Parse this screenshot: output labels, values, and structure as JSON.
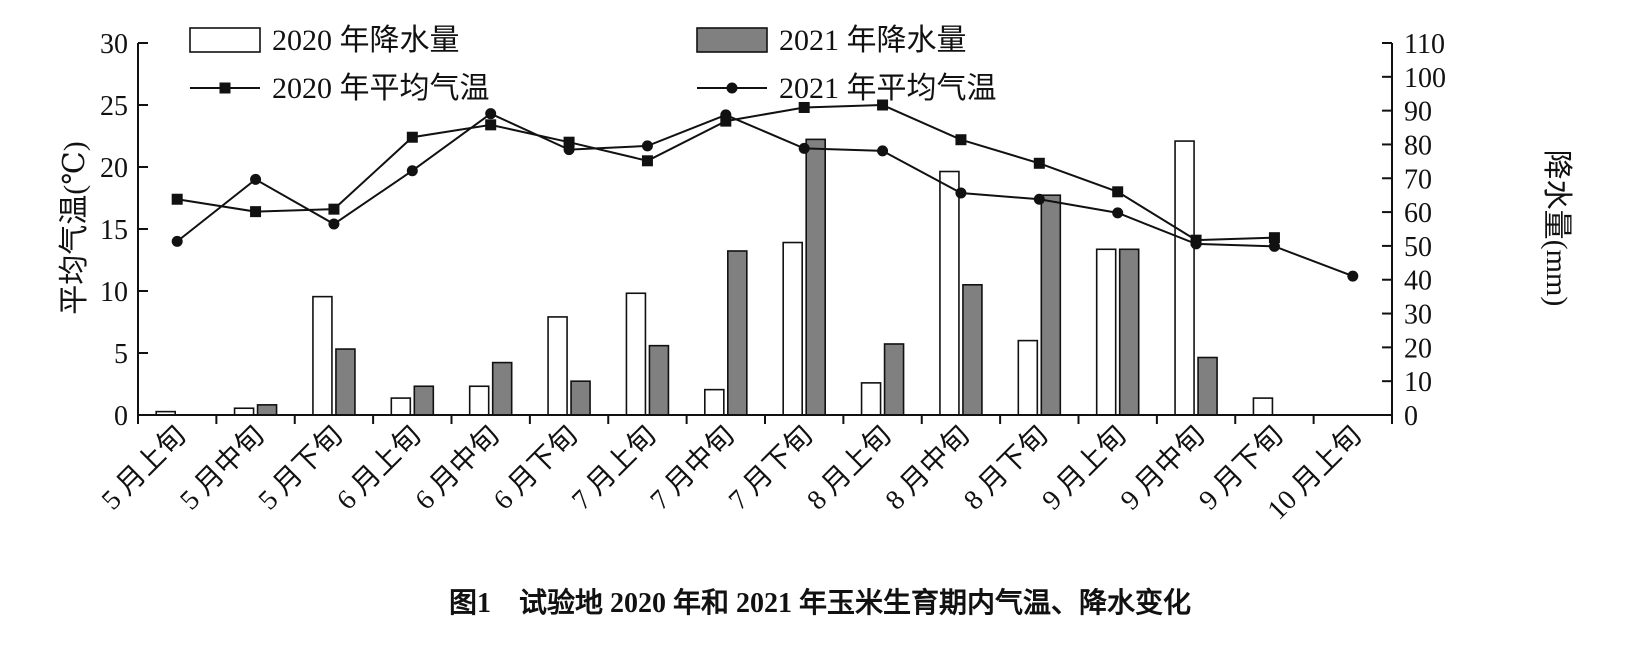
{
  "chart_data": {
    "type": "bar",
    "caption": "图1　试验地 2020 年和 2021 年玉米生育期内气温、降水变化",
    "y_left_label": "平均气温(℃)",
    "y_right_label": "降水量(mm)",
    "y_left_lim": [
      0,
      30
    ],
    "y_left_ticks": [
      0,
      5,
      10,
      15,
      20,
      25,
      30
    ],
    "y_right_lim": [
      0,
      110
    ],
    "y_right_ticks": [
      0,
      10,
      20,
      30,
      40,
      50,
      60,
      70,
      80,
      90,
      100,
      110
    ],
    "grid": false,
    "legend_position": "top",
    "categories": [
      "5 月上旬",
      "5 月中旬",
      "5 月下旬",
      "6 月上旬",
      "6 月中旬",
      "6 月下旬",
      "7 月上旬",
      "7 月中旬",
      "7 月下旬",
      "8 月上旬",
      "8 月中旬",
      "8 月下旬",
      "9 月上旬",
      "9 月中旬",
      "9 月下旬",
      "10 月上旬"
    ],
    "bar_series": [
      {
        "name": "2020 年降水量",
        "axis": "right",
        "color": "#ffffff",
        "values": [
          1,
          2,
          35,
          5,
          8.5,
          29,
          36,
          7.5,
          51,
          9.5,
          72,
          22,
          49,
          81,
          5,
          0
        ]
      },
      {
        "name": "2021 年降水量",
        "axis": "right",
        "color": "#808080",
        "values": [
          0,
          3,
          19.5,
          8.5,
          15.5,
          10,
          20.5,
          48.5,
          81.5,
          21,
          38.5,
          65,
          49,
          17,
          0,
          0
        ]
      }
    ],
    "line_series": [
      {
        "name": "2020 年平均气温",
        "axis": "left",
        "marker": "square",
        "values": [
          17.4,
          16.4,
          16.6,
          22.4,
          23.4,
          22.0,
          20.5,
          23.7,
          24.8,
          25.0,
          22.2,
          20.3,
          18.0,
          14.1,
          14.3,
          null
        ]
      },
      {
        "name": "2021 年平均气温",
        "axis": "left",
        "marker": "circle",
        "values": [
          14.0,
          19.0,
          15.4,
          19.7,
          24.3,
          21.4,
          21.7,
          24.2,
          21.5,
          21.3,
          17.9,
          17.4,
          16.3,
          13.8,
          13.6,
          11.2
        ]
      }
    ]
  }
}
